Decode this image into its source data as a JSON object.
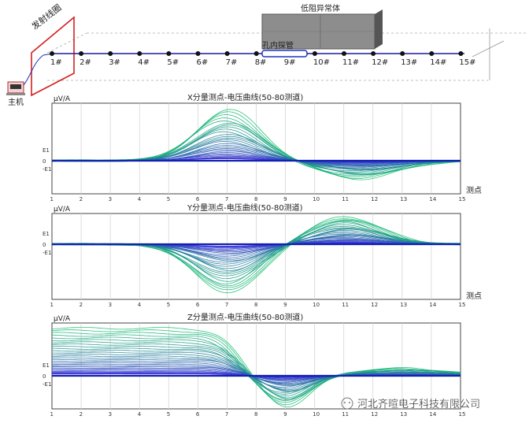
{
  "diagram": {
    "transmit_coil_label": "发射线圈",
    "host_label": "主机",
    "anomaly_label": "低阻异常体",
    "probe_label": "孔内探管",
    "points": [
      "1#",
      "2#",
      "3#",
      "4#",
      "5#",
      "6#",
      "7#",
      "8#",
      "9#",
      "10#",
      "11#",
      "12#",
      "13#",
      "14#",
      "15#"
    ]
  },
  "watermark": "河北齐暄电子科技有限公司",
  "chart_data": [
    {
      "type": "line",
      "title": "X分量测点-电压曲线(50-80测道)",
      "ylabel": "μV/A",
      "xlabel": "测点",
      "x": [
        1,
        2,
        3,
        4,
        5,
        6,
        7,
        8,
        9,
        10,
        11,
        12,
        13,
        14,
        15
      ],
      "xlim": [
        1,
        15
      ],
      "ytick_labels": [
        "E1",
        "0",
        "-E1"
      ],
      "grid": true,
      "series_count": 30
    },
    {
      "type": "line",
      "title": "Y分量测点-电压曲线(50-80测道)",
      "ylabel": "μV/A",
      "xlabel": "测点",
      "x": [
        1,
        2,
        3,
        4,
        5,
        6,
        7,
        8,
        9,
        10,
        11,
        12,
        13,
        14,
        15
      ],
      "xlim": [
        1,
        15
      ],
      "ytick_labels": [
        "E1",
        "0",
        "-E1"
      ],
      "grid": true,
      "series_count": 30
    },
    {
      "type": "line",
      "title": "Z分量测点-电压曲线(50-80测道)",
      "ylabel": "μV/A",
      "xlabel": "",
      "x": [
        1,
        2,
        3,
        4,
        5,
        6,
        7,
        8,
        9,
        10,
        11,
        12,
        13,
        14,
        15
      ],
      "xlim": [
        1,
        15
      ],
      "ytick_labels": [
        "E1",
        "0",
        "-E1"
      ],
      "grid": true,
      "series_count": 30
    }
  ]
}
